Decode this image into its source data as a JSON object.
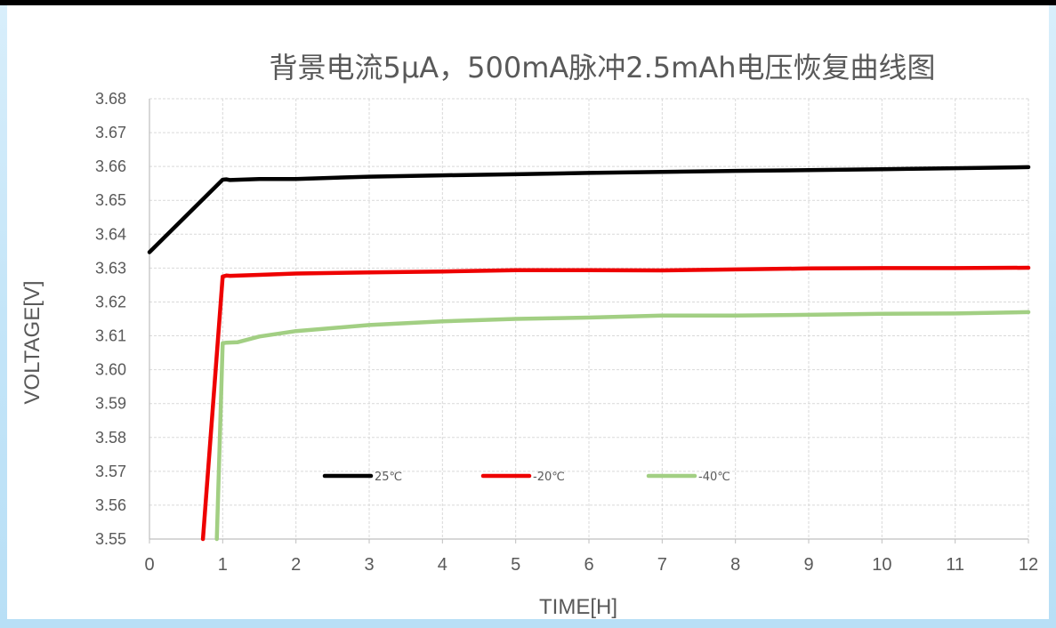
{
  "chart_data": {
    "type": "line",
    "title": "背景电流5μA，500mA脉冲2.5mAh电压恢复曲线图",
    "xlabel": "TIME[H]",
    "ylabel": "VOLTAGE[V]",
    "xlim": [
      0,
      12
    ],
    "ylim": [
      3.55,
      3.68
    ],
    "x_ticks": [
      "0",
      "1",
      "2",
      "3",
      "4",
      "5",
      "6",
      "7",
      "8",
      "9",
      "10",
      "11",
      "12"
    ],
    "y_ticks": [
      "3.55",
      "3.56",
      "3.57",
      "3.58",
      "3.59",
      "3.60",
      "3.61",
      "3.62",
      "3.63",
      "3.64",
      "3.65",
      "3.66",
      "3.67",
      "3.68"
    ],
    "grid": true,
    "legend_position": "inside-lower-left",
    "series": [
      {
        "name": "25℃",
        "color": "#000000",
        "x": [
          0,
          1.0,
          1.05,
          1.1,
          1.5,
          1.8,
          2,
          3,
          4,
          5,
          6,
          7,
          8,
          9,
          10,
          11,
          12
        ],
        "y": [
          3.6347,
          3.6561,
          3.6562,
          3.656,
          3.6563,
          3.6563,
          3.6563,
          3.657,
          3.6574,
          3.6577,
          3.6581,
          3.6584,
          3.6587,
          3.6589,
          3.6592,
          3.6595,
          3.6598
        ]
      },
      {
        "name": "-20℃",
        "color": "#ee0000",
        "x": [
          0.73,
          1.0,
          1.05,
          1.1,
          1.5,
          2,
          3,
          4,
          5,
          6,
          7,
          8,
          9,
          10,
          11,
          12
        ],
        "y": [
          3.55,
          3.6275,
          3.6278,
          3.6277,
          3.628,
          3.6284,
          3.6287,
          3.629,
          3.6294,
          3.6294,
          3.6293,
          3.6296,
          3.6299,
          3.63,
          3.63,
          3.6301
        ]
      },
      {
        "name": "-40℃",
        "color": "#a2cf83",
        "x": [
          0.92,
          1.0,
          1.05,
          1.2,
          1.5,
          2,
          3,
          4,
          5,
          6,
          7,
          8,
          9,
          10,
          11,
          12
        ],
        "y": [
          3.55,
          3.6078,
          3.608,
          3.6081,
          3.6098,
          3.6114,
          3.6132,
          3.6143,
          3.615,
          3.6154,
          3.616,
          3.616,
          3.6162,
          3.6165,
          3.6166,
          3.617
        ]
      }
    ]
  }
}
